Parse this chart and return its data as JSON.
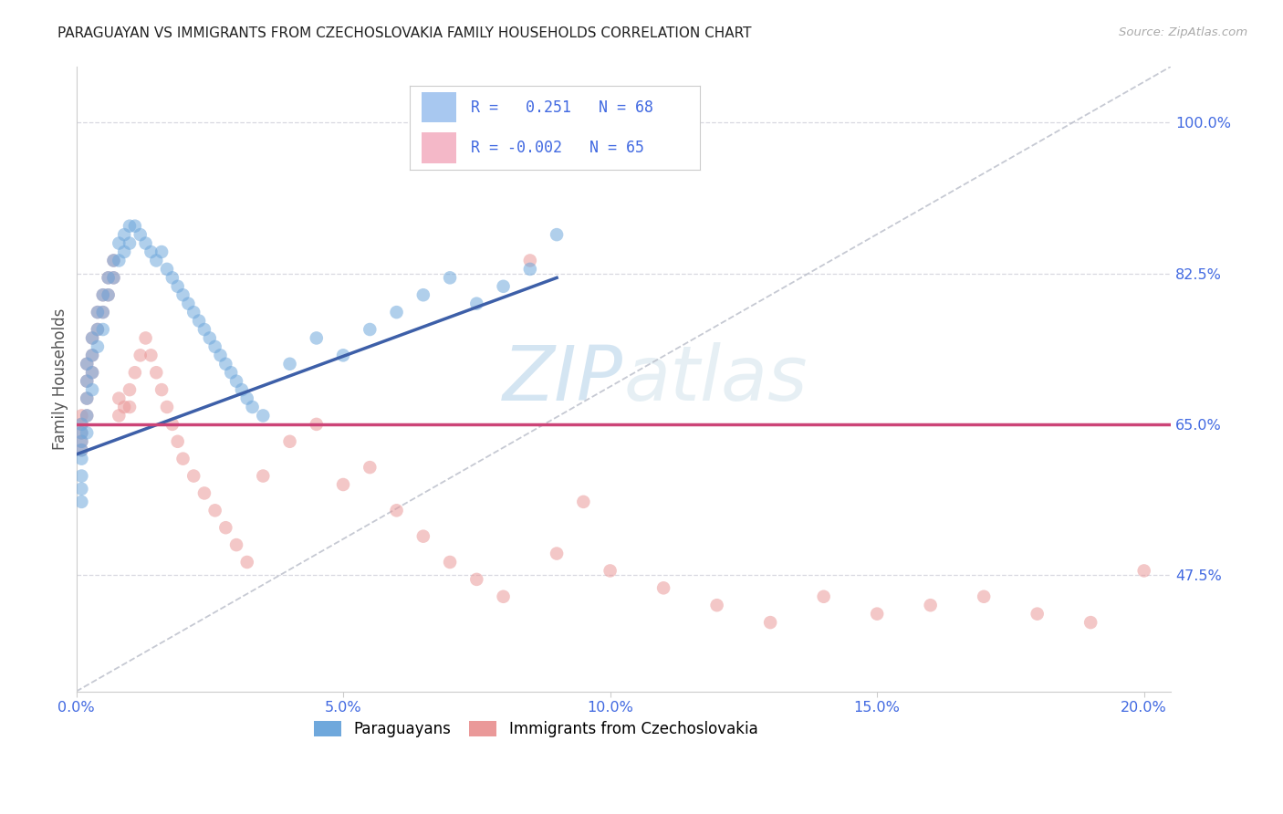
{
  "title": "PARAGUAYAN VS IMMIGRANTS FROM CZECHOSLOVAKIA FAMILY HOUSEHOLDS CORRELATION CHART",
  "source": "Source: ZipAtlas.com",
  "ylabel": "Family Households",
  "ytick_labels": [
    "47.5%",
    "65.0%",
    "82.5%",
    "100.0%"
  ],
  "ytick_values": [
    0.475,
    0.65,
    0.825,
    1.0
  ],
  "xtick_labels": [
    "0.0%",
    "5.0%",
    "10.0%",
    "15.0%",
    "20.0%"
  ],
  "xtick_values": [
    0.0,
    0.05,
    0.1,
    0.15,
    0.2
  ],
  "xlim": [
    0.0,
    0.205
  ],
  "ylim": [
    0.34,
    1.065
  ],
  "blue_dot_color": "#6fa8dc",
  "pink_dot_color": "#ea9999",
  "blue_line_color": "#3d5fa8",
  "pink_line_color": "#cc4477",
  "ref_line_color": "#b8bcc8",
  "tick_label_color": "#4169e1",
  "watermark_color": "#c8ddf0",
  "grid_color": "#d8d8e0",
  "legend_blue_fill": "#a8c8f0",
  "legend_pink_fill": "#f4b8c8",
  "legend_border_color": "#cccccc",
  "par_x": [
    0.001,
    0.001,
    0.001,
    0.001,
    0.001,
    0.001,
    0.001,
    0.001,
    0.002,
    0.002,
    0.002,
    0.002,
    0.002,
    0.003,
    0.003,
    0.003,
    0.003,
    0.004,
    0.004,
    0.004,
    0.005,
    0.005,
    0.005,
    0.006,
    0.006,
    0.007,
    0.007,
    0.008,
    0.008,
    0.009,
    0.009,
    0.01,
    0.01,
    0.011,
    0.012,
    0.013,
    0.014,
    0.015,
    0.016,
    0.017,
    0.018,
    0.019,
    0.02,
    0.021,
    0.022,
    0.023,
    0.024,
    0.025,
    0.026,
    0.027,
    0.028,
    0.029,
    0.03,
    0.031,
    0.032,
    0.033,
    0.035,
    0.04,
    0.045,
    0.05,
    0.055,
    0.06,
    0.065,
    0.07,
    0.075,
    0.08,
    0.085,
    0.09
  ],
  "par_y": [
    0.65,
    0.64,
    0.63,
    0.62,
    0.61,
    0.59,
    0.575,
    0.56,
    0.72,
    0.7,
    0.68,
    0.66,
    0.64,
    0.75,
    0.73,
    0.71,
    0.69,
    0.78,
    0.76,
    0.74,
    0.8,
    0.78,
    0.76,
    0.82,
    0.8,
    0.84,
    0.82,
    0.86,
    0.84,
    0.87,
    0.85,
    0.88,
    0.86,
    0.88,
    0.87,
    0.86,
    0.85,
    0.84,
    0.85,
    0.83,
    0.82,
    0.81,
    0.8,
    0.79,
    0.78,
    0.77,
    0.76,
    0.75,
    0.74,
    0.73,
    0.72,
    0.71,
    0.7,
    0.69,
    0.68,
    0.67,
    0.66,
    0.72,
    0.75,
    0.73,
    0.76,
    0.78,
    0.8,
    0.82,
    0.79,
    0.81,
    0.83,
    0.87
  ],
  "czech_x": [
    0.001,
    0.001,
    0.001,
    0.001,
    0.001,
    0.002,
    0.002,
    0.002,
    0.002,
    0.003,
    0.003,
    0.003,
    0.004,
    0.004,
    0.005,
    0.005,
    0.006,
    0.006,
    0.007,
    0.007,
    0.008,
    0.008,
    0.009,
    0.01,
    0.01,
    0.011,
    0.012,
    0.013,
    0.014,
    0.015,
    0.016,
    0.017,
    0.018,
    0.019,
    0.02,
    0.022,
    0.024,
    0.026,
    0.028,
    0.03,
    0.032,
    0.035,
    0.04,
    0.045,
    0.05,
    0.055,
    0.06,
    0.065,
    0.07,
    0.075,
    0.08,
    0.09,
    0.1,
    0.11,
    0.12,
    0.13,
    0.14,
    0.15,
    0.16,
    0.17,
    0.18,
    0.19,
    0.2,
    0.085,
    0.095
  ],
  "czech_y": [
    0.66,
    0.65,
    0.64,
    0.63,
    0.62,
    0.72,
    0.7,
    0.68,
    0.66,
    0.75,
    0.73,
    0.71,
    0.78,
    0.76,
    0.8,
    0.78,
    0.82,
    0.8,
    0.84,
    0.82,
    0.68,
    0.66,
    0.67,
    0.69,
    0.67,
    0.71,
    0.73,
    0.75,
    0.73,
    0.71,
    0.69,
    0.67,
    0.65,
    0.63,
    0.61,
    0.59,
    0.57,
    0.55,
    0.53,
    0.51,
    0.49,
    0.59,
    0.63,
    0.65,
    0.58,
    0.6,
    0.55,
    0.52,
    0.49,
    0.47,
    0.45,
    0.5,
    0.48,
    0.46,
    0.44,
    0.42,
    0.45,
    0.43,
    0.44,
    0.45,
    0.43,
    0.42,
    0.48,
    0.84,
    0.56
  ]
}
